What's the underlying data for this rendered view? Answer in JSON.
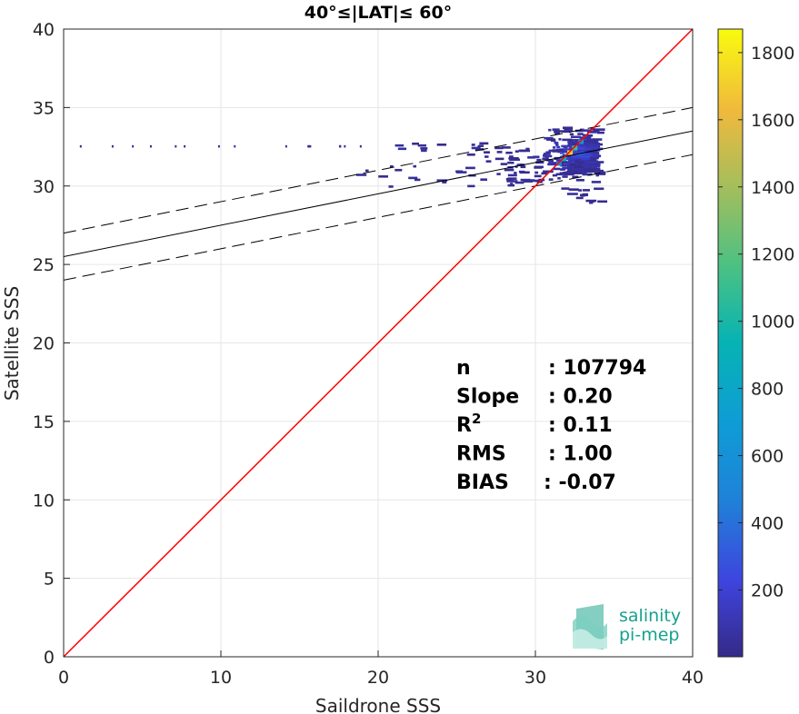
{
  "chart_data": {
    "type": "heatmap",
    "title": "40°≤|LAT|≤ 60°",
    "xlabel": "Saildrone SSS",
    "ylabel": "Satellite SSS",
    "xlim": [
      0,
      40
    ],
    "ylim": [
      0,
      40
    ],
    "xticks": [
      0,
      10,
      20,
      30,
      40
    ],
    "yticks": [
      0,
      5,
      10,
      15,
      20,
      25,
      30,
      35,
      40
    ],
    "grid": true,
    "colorbar": {
      "colormap": "parula",
      "range": [
        1,
        1870
      ],
      "ticks": [
        200,
        400,
        600,
        800,
        1000,
        1200,
        1400,
        1600,
        1800
      ]
    },
    "lines": {
      "identity": {
        "slope": 1,
        "intercept": 0,
        "color": "#ff0000"
      },
      "fit": {
        "slope": 0.2,
        "intercept": 25.5,
        "color": "#000000"
      },
      "fit_upper": {
        "slope": 0.2,
        "intercept": 27.0,
        "color": "#000000"
      },
      "fit_lower": {
        "slope": 0.2,
        "intercept": 24.0,
        "color": "#000000"
      }
    },
    "stats": [
      {
        "label": "n",
        "sup": "",
        "value": ": 107794"
      },
      {
        "label": "Slope",
        "sup": "",
        "value": ": 0.20"
      },
      {
        "label": "R",
        "sup": "2",
        "value": ": 0.11"
      },
      {
        "label": "RMS",
        "sup": "",
        "value": ": 1.00"
      },
      {
        "label": "BIAS",
        "sup": "",
        "value": ": -0.07"
      }
    ],
    "density_blobs": [
      {
        "x": [
          25.5,
          34
        ],
        "y": [
          31.5,
          32.8
        ],
        "count": 40
      },
      {
        "x": [
          28,
          34
        ],
        "y": [
          30.2,
          32.0
        ],
        "count": 60
      },
      {
        "x": [
          30.5,
          34
        ],
        "y": [
          30.8,
          33.8
        ],
        "count": 120
      },
      {
        "x": [
          18,
          30
        ],
        "y": [
          30.0,
          31.5
        ],
        "count": 30
      },
      {
        "x": [
          21,
          27
        ],
        "y": [
          32.2,
          32.8
        ],
        "count": 8
      },
      {
        "x": [
          32,
          33.5
        ],
        "y": [
          31.0,
          33.0
        ],
        "count": 400
      },
      {
        "x": [
          31.5,
          34
        ],
        "y": [
          29.0,
          30.0
        ],
        "count": 14
      },
      {
        "x": [
          0,
          19
        ],
        "y": [
          32.6,
          32.6
        ],
        "count": 16
      }
    ],
    "density_core": [
      {
        "x": 32.2,
        "y": 32.1,
        "count": 1700
      },
      {
        "x": 32.5,
        "y": 32.4,
        "count": 1150
      },
      {
        "x": 31.8,
        "y": 31.7,
        "count": 950
      },
      {
        "x": 32.9,
        "y": 32.8,
        "count": 650
      },
      {
        "x": 31.5,
        "y": 31.4,
        "count": 480
      }
    ]
  },
  "logo": {
    "line1": "salinity",
    "line2": "pi-mep"
  }
}
